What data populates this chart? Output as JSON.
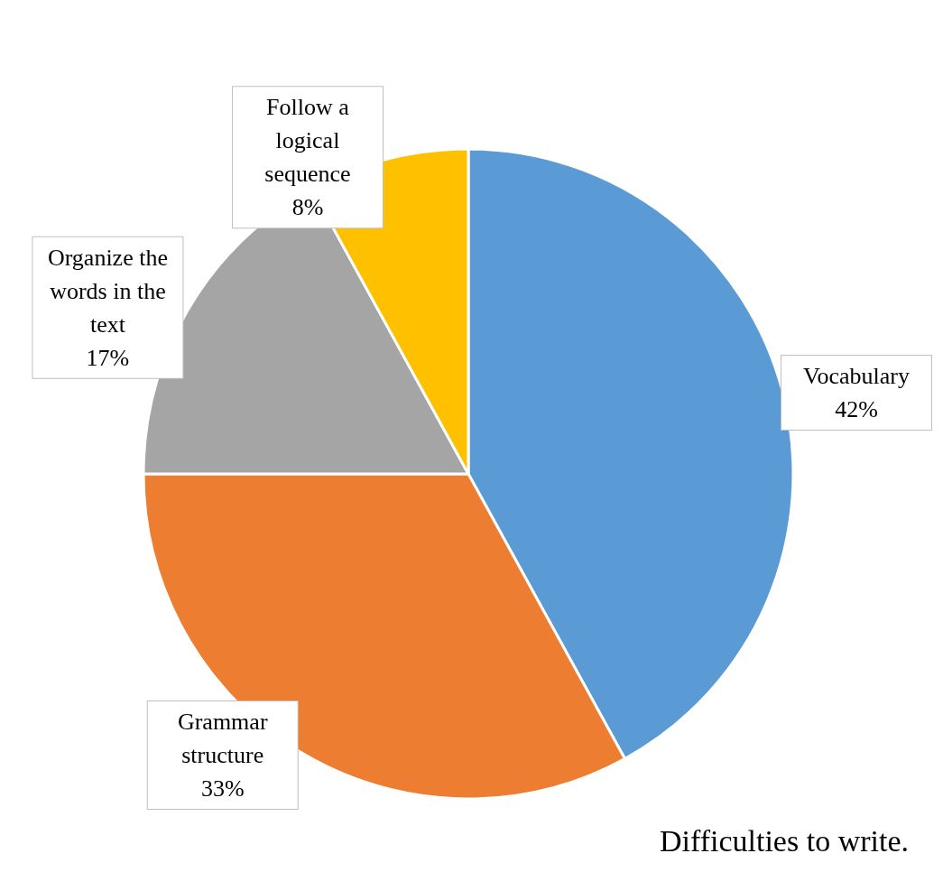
{
  "chart_data": {
    "type": "pie",
    "categories": [
      "Vocabulary",
      "Grammar structure",
      "Organize the words in the text",
      "Follow a logical sequence"
    ],
    "values": [
      42,
      33,
      17,
      8
    ],
    "colors": [
      "#5b9bd5",
      "#ed7d31",
      "#a5a5a5",
      "#ffc000"
    ],
    "value_labels": [
      "42%",
      "33%",
      "17%",
      "8%"
    ],
    "legend": false,
    "annotations": [
      "Difficulties to write."
    ]
  }
}
